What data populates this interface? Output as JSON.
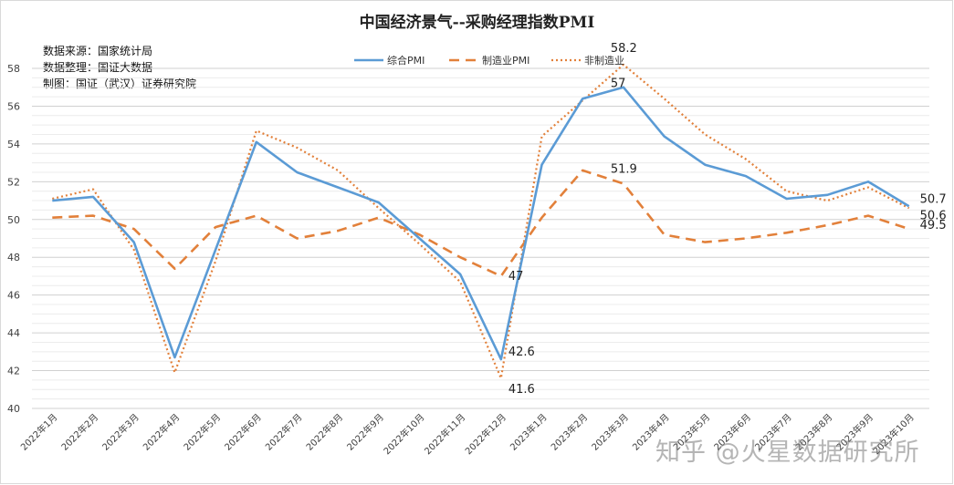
{
  "chart_data": {
    "type": "line",
    "title": "中国经济景气--采购经理指数PMI",
    "notes": [
      "数据来源：国家统计局",
      "数据整理：国证大数据",
      "制图：国证（武汉）证券研究院"
    ],
    "categories": [
      "2022年1月",
      "2022年2月",
      "2022年3月",
      "2022年4月",
      "2022年5月",
      "2022年6月",
      "2022年7月",
      "2022年8月",
      "2022年9月",
      "2022年10月",
      "2022年11月",
      "2022年12月",
      "2023年1月",
      "2023年2月",
      "2023年3月",
      "2023年4月",
      "2023年5月",
      "2023年6月",
      "2023年7月",
      "2023年8月",
      "2023年9月",
      "2023年10月"
    ],
    "ylim": [
      40,
      58
    ],
    "yticks": [
      "40",
      "42",
      "44",
      "46",
      "48",
      "50",
      "52",
      "54",
      "56",
      "58"
    ],
    "xlabel": "",
    "ylabel": "",
    "grid": true,
    "legend": "top-center",
    "series": [
      {
        "name": "综合PMI",
        "style": "solid",
        "color": "#5b9bd5",
        "values": [
          51.0,
          51.2,
          48.8,
          42.7,
          48.4,
          54.1,
          52.5,
          51.7,
          50.9,
          49.0,
          47.1,
          42.6,
          52.9,
          56.4,
          57.0,
          54.4,
          52.9,
          52.3,
          51.1,
          51.3,
          52.0,
          50.7
        ]
      },
      {
        "name": "制造业PMI",
        "style": "dashed",
        "color": "#e2803a",
        "values": [
          50.1,
          50.2,
          49.5,
          47.4,
          49.6,
          50.2,
          49.0,
          49.4,
          50.1,
          49.2,
          48.0,
          47.0,
          50.1,
          52.6,
          51.9,
          49.2,
          48.8,
          49.0,
          49.3,
          49.7,
          50.2,
          49.5
        ]
      },
      {
        "name": "非制造业",
        "style": "dotted",
        "color": "#e2803a",
        "values": [
          51.1,
          51.6,
          48.4,
          41.9,
          47.8,
          54.7,
          53.8,
          52.6,
          50.6,
          48.7,
          46.7,
          41.6,
          54.4,
          56.3,
          58.2,
          56.4,
          54.5,
          53.2,
          51.5,
          51.0,
          51.7,
          50.6
        ]
      }
    ],
    "annotations": [
      {
        "text": "47",
        "series": 1,
        "index": 11
      },
      {
        "text": "42.6",
        "series": 0,
        "index": 11
      },
      {
        "text": "41.6",
        "series": 2,
        "index": 11
      },
      {
        "text": "58.2",
        "series": 2,
        "index": 14
      },
      {
        "text": "57",
        "series": 0,
        "index": 14
      },
      {
        "text": "51.9",
        "series": 1,
        "index": 14
      },
      {
        "text": "50.7",
        "series": 0,
        "index": 21
      },
      {
        "text": "50.6",
        "series": 2,
        "index": 21
      },
      {
        "text": "49.5",
        "series": 1,
        "index": 21
      }
    ]
  },
  "watermark": "知乎 @火星数据研究所"
}
